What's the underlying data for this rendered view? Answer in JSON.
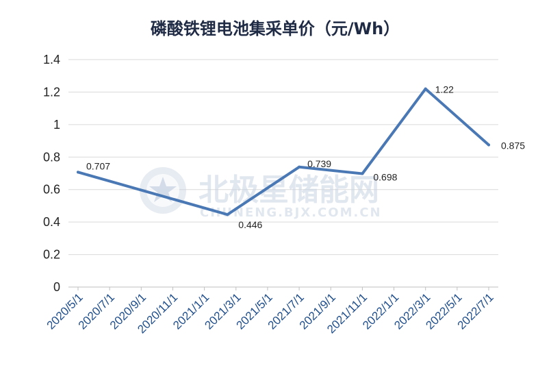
{
  "chart_data": {
    "type": "line",
    "title": "磷酸铁锂电池集采单价（元/Wh）",
    "xlabel": "",
    "ylabel": "",
    "ylim": [
      0,
      1.4
    ],
    "yticks": [
      "0",
      "0.2",
      "0.4",
      "0.6",
      "0.8",
      "1",
      "1.2",
      "1.4"
    ],
    "categories": [
      "2020/5/1",
      "2020/7/1",
      "2020/9/1",
      "2020/11/1",
      "2021/1/1",
      "2021/3/1",
      "2021/5/1",
      "2021/7/1",
      "2021/9/1",
      "2021/11/1",
      "2022/1/1",
      "2022/3/1",
      "2022/5/1",
      "2022/7/1"
    ],
    "grid": true,
    "legend": "none",
    "line_color": "#4a78b5",
    "series": [
      {
        "points": [
          {
            "x": "2020/5/1",
            "y": 0.707,
            "label": "0.707"
          },
          {
            "x": "2021/2/15",
            "y": 0.446,
            "label": "0.446"
          },
          {
            "x": "2021/7/1",
            "y": 0.739,
            "label": "0.739"
          },
          {
            "x": "2021/11/1",
            "y": 0.698,
            "label": "0.698"
          },
          {
            "x": "2022/3/1",
            "y": 1.22,
            "label": "1.22"
          },
          {
            "x": "2022/7/1",
            "y": 0.875,
            "label": "0.875"
          }
        ]
      }
    ]
  },
  "watermark": {
    "brand": "北极星储能网",
    "url": "CHUNENG.BJX.COM.CN"
  }
}
